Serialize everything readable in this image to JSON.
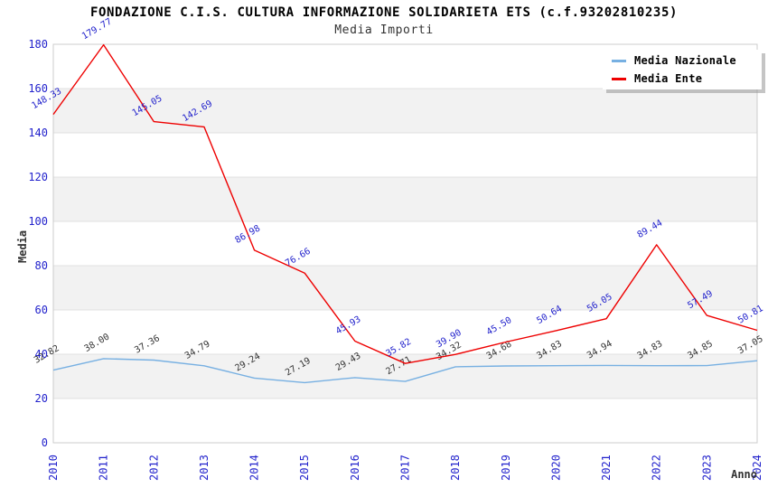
{
  "chart_data": {
    "type": "line",
    "title": "FONDAZIONE C.I.S. CULTURA INFORMAZIONE SOLIDARIETA ETS (c.f.93202810235)",
    "subtitle": "Media Importi",
    "xlabel": "Anno",
    "ylabel": "Media",
    "x": [
      2010,
      2011,
      2012,
      2013,
      2014,
      2015,
      2016,
      2017,
      2018,
      2019,
      2020,
      2021,
      2022,
      2023,
      2024
    ],
    "series": [
      {
        "name": "Media Nazionale",
        "color": "#77b0e2",
        "label_color": "#333333",
        "values": [
          32.82,
          38.0,
          37.36,
          34.79,
          29.24,
          27.19,
          29.43,
          27.71,
          34.32,
          34.68,
          34.83,
          34.94,
          34.83,
          34.85,
          37.05
        ]
      },
      {
        "name": "Media Ente",
        "color": "#ee0000",
        "label_color": "#2222cc",
        "values": [
          148.33,
          179.77,
          145.05,
          142.69,
          86.98,
          76.66,
          45.93,
          35.82,
          39.9,
          45.5,
          50.64,
          56.05,
          89.44,
          57.49,
          50.81
        ]
      }
    ],
    "ylim": [
      0,
      180
    ],
    "y_tick_step": 20,
    "grid": "horizontal gridlines every 20 units",
    "plot_bands": "alternating light-gray horizontal bands at 20-40, 60-80, 100-120, 140-160",
    "legend_position": "top-right",
    "value_label_decimals": 2,
    "axis_tick_color": "#2222cc"
  },
  "colors": {
    "background": "#ffffff",
    "band": "#f2f2f2",
    "gridline": "#e0e0e0",
    "plot_border": "#cccccc",
    "title": "#000000",
    "subtitle": "#333333",
    "axis_titles": "#333333"
  }
}
